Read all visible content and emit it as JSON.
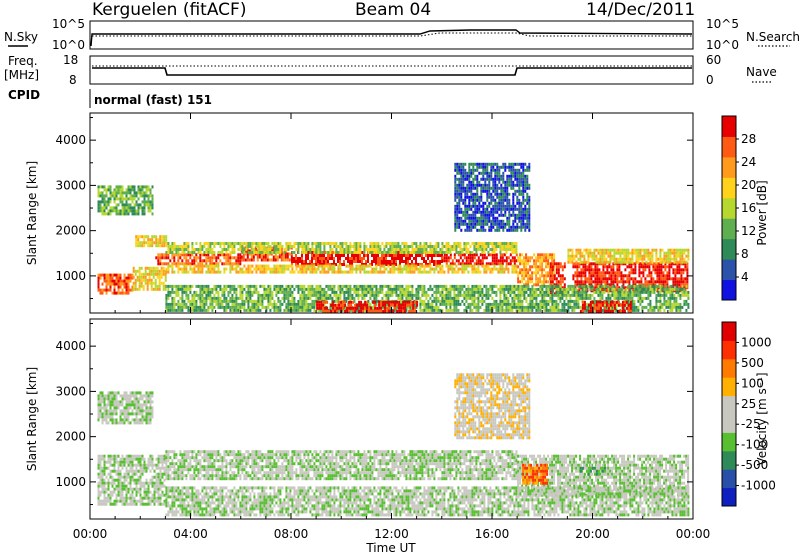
{
  "header": {
    "station": "Kerguelen (fitACF)",
    "beam": "Beam 04",
    "date": "14/Dec/2011"
  },
  "top_panels": {
    "nsky": {
      "label": "N.Sky",
      "ticks": [
        "10^5",
        "10^0"
      ]
    },
    "nsearch": {
      "label": "N.Search",
      "ticks": [
        "10^5",
        "10^0"
      ]
    },
    "freq": {
      "label_line1": "Freq.",
      "label_line2": "[MHz]",
      "ticks": [
        "18",
        "8"
      ]
    },
    "nave": {
      "label": "Nave",
      "ticks": [
        "60",
        "0"
      ]
    },
    "cpid": {
      "label": "CPID",
      "value": "normal (fast) 151"
    }
  },
  "colors": {
    "power_scale": [
      "#1010e0",
      "#2a52a8",
      "#2e8b57",
      "#5fae50",
      "#b6d82e",
      "#ffd21c",
      "#ff9a1c",
      "#ff5a14",
      "#e80000"
    ],
    "velocity_scale": [
      "#1020c0",
      "#2850a8",
      "#2e8b57",
      "#58c030",
      "#c8c8c0",
      "#c8c8c0",
      "#ffb000",
      "#ff7a00",
      "#ff3000",
      "#e00000"
    ]
  },
  "chart_data": [
    {
      "type": "heatmap",
      "title": "Power",
      "xlabel": "",
      "ylabel": "Slant Range [km]",
      "xlim": [
        "00:00",
        "00:00"
      ],
      "x_ticks": [
        "00:00",
        "04:00",
        "08:00",
        "12:00",
        "16:00",
        "20:00",
        "00:00"
      ],
      "ylim": [
        180,
        4600
      ],
      "y_ticks": [
        "1000",
        "2000",
        "3000",
        "4000"
      ],
      "colorbar": {
        "label": "Power [dB]",
        "ticks": [
          "28",
          "24",
          "20",
          "16",
          "12",
          "8",
          "4"
        ],
        "range": [
          0,
          32
        ]
      },
      "bands": [
        {
          "start_h": 0.3,
          "end_h": 1.7,
          "lo_km": 600,
          "hi_km": 1050,
          "level": 7
        },
        {
          "start_h": 1.7,
          "end_h": 3.0,
          "lo_km": 700,
          "hi_km": 1200,
          "level": 5
        },
        {
          "start_h": 0.3,
          "end_h": 2.5,
          "lo_km": 2400,
          "hi_km": 3000,
          "level": 3
        },
        {
          "start_h": 1.8,
          "end_h": 3.0,
          "lo_km": 1700,
          "hi_km": 1900,
          "level": 5
        },
        {
          "start_h": 2.6,
          "end_h": 6.0,
          "lo_km": 1250,
          "hi_km": 1500,
          "level": 7
        },
        {
          "start_h": 6.0,
          "end_h": 8.0,
          "lo_km": 1350,
          "hi_km": 1650,
          "level": 7
        },
        {
          "start_h": 8.0,
          "end_h": 14.0,
          "lo_km": 1250,
          "hi_km": 1550,
          "level": 8
        },
        {
          "start_h": 14.0,
          "end_h": 17.0,
          "lo_km": 1250,
          "hi_km": 1500,
          "level": 8
        },
        {
          "start_h": 3.0,
          "end_h": 17.0,
          "lo_km": 1100,
          "hi_km": 1250,
          "level": 5
        },
        {
          "start_h": 3.0,
          "end_h": 17.0,
          "lo_km": 1550,
          "hi_km": 1750,
          "level": 4
        },
        {
          "start_h": 17.0,
          "end_h": 18.5,
          "lo_km": 800,
          "hi_km": 1500,
          "level": 6
        },
        {
          "start_h": 18.3,
          "end_h": 18.9,
          "lo_km": 600,
          "hi_km": 1300,
          "level": 8
        },
        {
          "start_h": 19.2,
          "end_h": 23.8,
          "lo_km": 700,
          "hi_km": 1300,
          "level": 8
        },
        {
          "start_h": 19.0,
          "end_h": 23.8,
          "lo_km": 1300,
          "hi_km": 1600,
          "level": 5
        },
        {
          "start_h": 3.0,
          "end_h": 23.8,
          "lo_km": 250,
          "hi_km": 800,
          "level": 3
        },
        {
          "start_h": 14.5,
          "end_h": 17.5,
          "lo_km": 2000,
          "hi_km": 3500,
          "level": 1
        },
        {
          "start_h": 9.0,
          "end_h": 13.0,
          "lo_km": 200,
          "hi_km": 450,
          "level": 8
        },
        {
          "start_h": 19.5,
          "end_h": 21.5,
          "lo_km": 250,
          "hi_km": 450,
          "level": 8
        }
      ]
    },
    {
      "type": "heatmap",
      "title": "Velocity",
      "xlabel": "Time UT",
      "ylabel": "Slant Range [km]",
      "xlim": [
        "00:00",
        "00:00"
      ],
      "x_ticks": [
        "00:00",
        "04:00",
        "08:00",
        "12:00",
        "16:00",
        "20:00",
        "00:00"
      ],
      "ylim": [
        180,
        4600
      ],
      "y_ticks": [
        "1000",
        "2000",
        "3000",
        "4000"
      ],
      "colorbar": {
        "label": "Velocity [m s⁻¹]",
        "ticks": [
          "1000",
          "500",
          "100",
          "25",
          "-25",
          "-100",
          "-500",
          "-1000"
        ],
        "range": [
          -1200,
          1200
        ]
      },
      "bands": [
        {
          "start_h": 0.3,
          "end_h": 3.0,
          "lo_km": 500,
          "hi_km": 1600,
          "level": 4
        },
        {
          "start_h": 0.3,
          "end_h": 2.5,
          "lo_km": 2300,
          "hi_km": 3000,
          "level": 4
        },
        {
          "start_h": 3.0,
          "end_h": 17.0,
          "lo_km": 1100,
          "hi_km": 1700,
          "level": 4
        },
        {
          "start_h": 17.0,
          "end_h": 23.8,
          "lo_km": 700,
          "hi_km": 1600,
          "level": 4
        },
        {
          "start_h": 17.2,
          "end_h": 18.2,
          "lo_km": 1000,
          "hi_km": 1400,
          "level": 7
        },
        {
          "start_h": 3.0,
          "end_h": 23.8,
          "lo_km": 250,
          "hi_km": 900,
          "level": 4
        },
        {
          "start_h": 14.5,
          "end_h": 17.5,
          "lo_km": 2000,
          "hi_km": 3400,
          "level": 5
        },
        {
          "start_h": 19.5,
          "end_h": 20.5,
          "lo_km": 1200,
          "hi_km": 1400,
          "level": 3
        }
      ]
    }
  ]
}
